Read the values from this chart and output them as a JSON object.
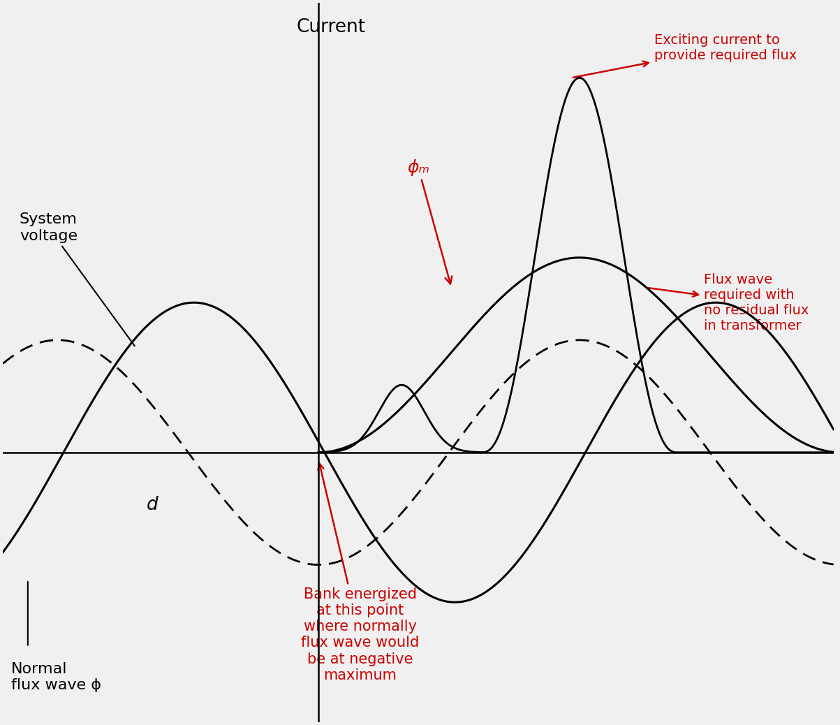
{
  "background_color": "#f0f0f0",
  "line_color": "#000000",
  "dashed_color": "#000000",
  "red_color": "#cc0000",
  "xlim": [
    -3.8,
    6.2
  ],
  "ylim": [
    -1.8,
    3.0
  ],
  "period": 6.28,
  "voltage_amp": 1.0,
  "flux_amp": 0.75,
  "req_flux_amp": 1.3,
  "inrush_peak": 2.5,
  "title": "Current",
  "system_voltage_label": "System\nvoltage",
  "normal_flux_label": "Normal\nflux wave ϕ",
  "d_label": "d",
  "phi_m_label": "ϕₘ",
  "exciting_current_label": "Exciting current to\nprovide required flux",
  "flux_wave_required_label": "Flux wave\nrequired with\nno residual flux\nin transformer",
  "bank_energized_label": "Bank energized\nat this point\nwhere normally\nflux wave would\nbe at negative\nmaximum"
}
